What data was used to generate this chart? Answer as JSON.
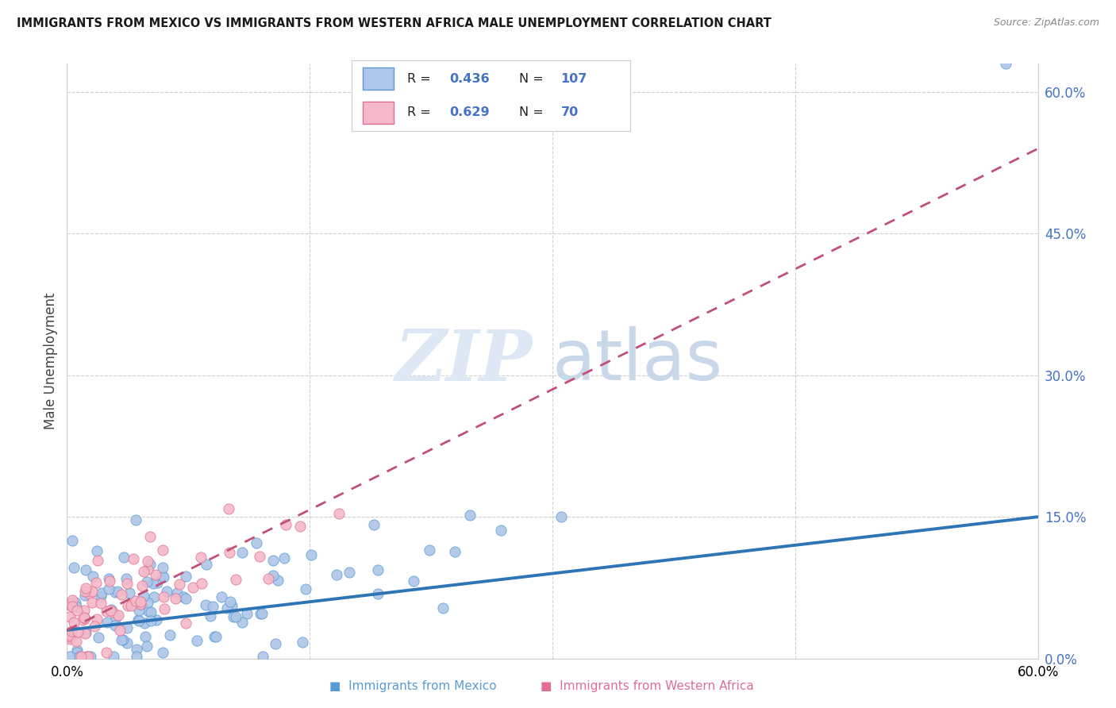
{
  "title": "IMMIGRANTS FROM MEXICO VS IMMIGRANTS FROM WESTERN AFRICA MALE UNEMPLOYMENT CORRELATION CHART",
  "source": "Source: ZipAtlas.com",
  "ylabel": "Male Unemployment",
  "R1": 0.436,
  "N1": 107,
  "R2": 0.629,
  "N2": 70,
  "color_mexico_fill": "#aec6e8",
  "color_mexico_edge": "#5b9bd5",
  "color_africa_fill": "#f4b8c8",
  "color_africa_edge": "#e07090",
  "color_mexico_line": "#2e75b6",
  "color_africa_line": "#c0507a",
  "color_right_axis": "#4472c4",
  "background_color": "#ffffff",
  "grid_color": "#d0d0d0",
  "legend_label1": "Immigrants from Mexico",
  "legend_label2": "Immigrants from Western Africa",
  "xlim": [
    0,
    60
  ],
  "ylim": [
    0,
    63
  ],
  "yticks": [
    0,
    15,
    30,
    45,
    60
  ],
  "ytick_labels": [
    "0.0%",
    "15.0%",
    "30.0%",
    "45.0%",
    "60.0%"
  ],
  "xtick_left": "0.0%",
  "xtick_right": "60.0%"
}
